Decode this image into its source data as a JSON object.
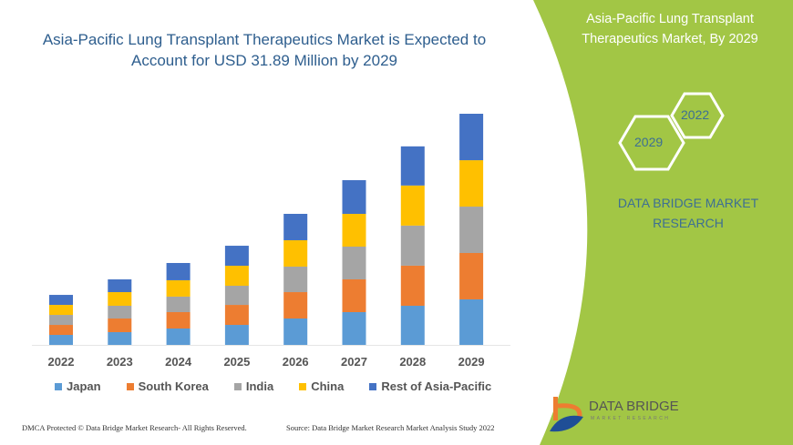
{
  "colors": {
    "panel_green": "#a2c645",
    "title_blue": "#2e5e8e",
    "brand_blue": "#3d6f93"
  },
  "left_title_line1": "Asia-Pacific Lung Transplant Therapeutics Market is Expected to",
  "left_title_line2": "Account for USD 31.89 Million by 2029",
  "right_panel": {
    "title_line1": "Asia-Pacific Lung Transplant",
    "title_line2": "Therapeutics Market, By 2029",
    "hex_top": "2022",
    "hex_bottom": "2029",
    "brand_line1": "DATA BRIDGE MARKET",
    "brand_line2": "RESEARCH",
    "logo_text": "DATA BRIDGE",
    "logo_sub": "MARKET RESEARCH"
  },
  "footer": {
    "left": "DMCA Protected © Data Bridge Market Research- All Rights Reserved.",
    "right": "Source: Data Bridge Market Research Market Analysis Study 2022"
  },
  "chart_data": {
    "type": "bar",
    "stacked": true,
    "title": "Asia-Pacific Lung Transplant Therapeutics Market is Expected to Account for USD 31.89 Million by 2029",
    "categories": [
      "2022",
      "2023",
      "2024",
      "2025",
      "2026",
      "2027",
      "2028",
      "2029"
    ],
    "series": [
      {
        "name": "Japan",
        "color": "#5b9bd5",
        "values": [
          1.38,
          1.76,
          2.26,
          2.76,
          3.64,
          4.52,
          5.4,
          6.28
        ]
      },
      {
        "name": "South Korea",
        "color": "#ed7d31",
        "values": [
          1.38,
          1.88,
          2.26,
          2.76,
          3.64,
          4.52,
          5.53,
          6.4
        ]
      },
      {
        "name": "India",
        "color": "#a5a5a5",
        "values": [
          1.38,
          1.76,
          2.14,
          2.64,
          3.52,
          4.52,
          5.53,
          6.4
        ]
      },
      {
        "name": "China",
        "color": "#ffc000",
        "values": [
          1.38,
          1.88,
          2.26,
          2.76,
          3.64,
          4.52,
          5.53,
          6.4
        ]
      },
      {
        "name": "Rest of Asia-Pacific",
        "color": "#4472c4",
        "values": [
          1.38,
          1.76,
          2.38,
          2.76,
          3.64,
          4.65,
          5.4,
          6.41
        ]
      }
    ],
    "legend_position": "bottom",
    "grid": false,
    "y_axis_shown": false
  }
}
